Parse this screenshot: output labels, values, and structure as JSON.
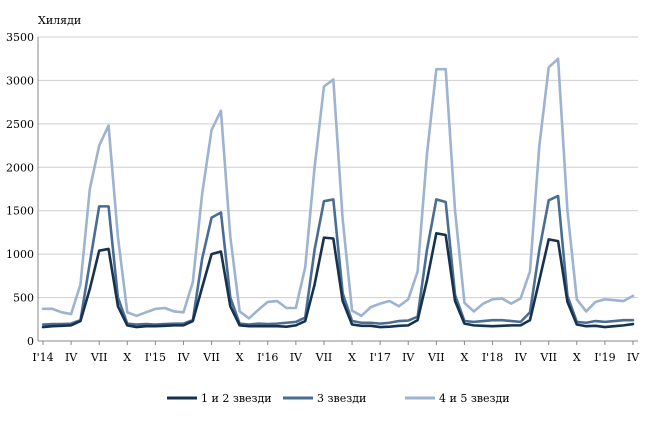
{
  "chart_data": {
    "type": "line",
    "ylabel": "Хиляди",
    "ylim": [
      0,
      3500
    ],
    "yticks": [
      0,
      500,
      1000,
      1500,
      2000,
      2500,
      3000,
      3500
    ],
    "grid": true,
    "legend_position": "bottom",
    "x": [
      "I'14",
      "II",
      "III",
      "IV",
      "V",
      "VI",
      "VII",
      "VIII",
      "IX",
      "X",
      "XI",
      "XII",
      "I'15",
      "II",
      "III",
      "IV",
      "V",
      "VI",
      "VII",
      "VIII",
      "IX",
      "X",
      "XI",
      "XII",
      "I'16",
      "II",
      "III",
      "IV",
      "V",
      "VI",
      "VII",
      "VIII",
      "IX",
      "X",
      "XI",
      "XII",
      "I'17",
      "II",
      "III",
      "IV",
      "V",
      "VI",
      "VII",
      "VIII",
      "IX",
      "X",
      "XI",
      "XII",
      "I'18",
      "II",
      "III",
      "IV",
      "V",
      "VI",
      "VII",
      "VIII",
      "IX",
      "X",
      "XI",
      "XII",
      "I'19",
      "II",
      "III",
      "IV"
    ],
    "x_tick_labels": [
      "I'14",
      "IV",
      "VII",
      "X",
      "I'15",
      "IV",
      "VII",
      "X",
      "I'16",
      "IV",
      "VII",
      "X",
      "I'17",
      "IV",
      "VII",
      "X",
      "I'18",
      "IV",
      "VII",
      "X",
      "I'19",
      "IV"
    ],
    "series": [
      {
        "name": "1 и 2 звезди",
        "color": "#17324d",
        "values": [
          160,
          170,
          175,
          180,
          230,
          600,
          1040,
          1060,
          400,
          180,
          160,
          170,
          170,
          175,
          180,
          180,
          230,
          620,
          1000,
          1030,
          400,
          180,
          170,
          170,
          170,
          170,
          165,
          180,
          230,
          650,
          1190,
          1180,
          460,
          190,
          175,
          175,
          160,
          165,
          175,
          180,
          240,
          700,
          1240,
          1220,
          460,
          200,
          180,
          175,
          170,
          175,
          180,
          180,
          240,
          700,
          1170,
          1150,
          450,
          190,
          170,
          175,
          160,
          170,
          180,
          195
        ]
      },
      {
        "name": "3 звезди",
        "color": "#4a6d93",
        "values": [
          190,
          195,
          195,
          200,
          240,
          900,
          1550,
          1550,
          500,
          200,
          190,
          195,
          190,
          195,
          200,
          200,
          240,
          950,
          1420,
          1480,
          500,
          200,
          190,
          200,
          195,
          200,
          210,
          220,
          270,
          1050,
          1610,
          1630,
          550,
          230,
          210,
          210,
          200,
          210,
          230,
          235,
          280,
          1050,
          1630,
          1600,
          530,
          230,
          220,
          230,
          240,
          240,
          230,
          220,
          330,
          1050,
          1620,
          1670,
          520,
          220,
          210,
          230,
          220,
          230,
          240,
          240
        ]
      },
      {
        "name": "4 и 5 звезди",
        "color": "#9db3d0",
        "values": [
          370,
          370,
          330,
          310,
          650,
          1750,
          2250,
          2480,
          1200,
          330,
          290,
          330,
          370,
          380,
          340,
          330,
          680,
          1700,
          2430,
          2650,
          1200,
          340,
          260,
          360,
          450,
          460,
          380,
          380,
          850,
          2000,
          2930,
          3010,
          1400,
          350,
          290,
          390,
          430,
          460,
          400,
          480,
          800,
          2150,
          3130,
          3130,
          1500,
          440,
          340,
          430,
          480,
          490,
          430,
          490,
          800,
          2250,
          3150,
          3250,
          1500,
          480,
          340,
          450,
          480,
          470,
          460,
          520
        ]
      }
    ]
  }
}
